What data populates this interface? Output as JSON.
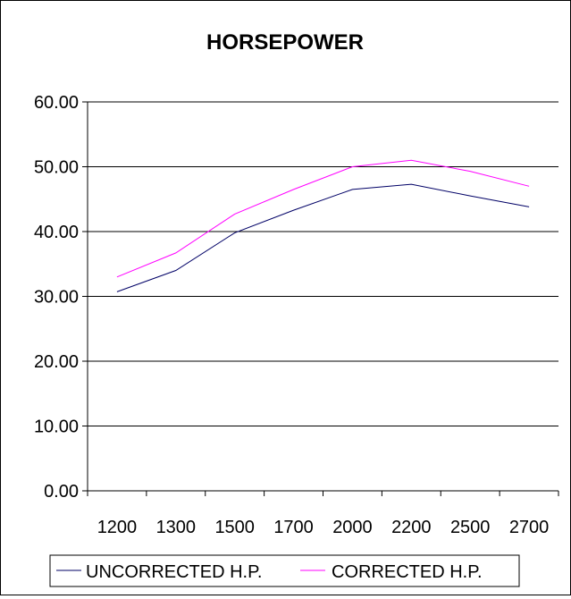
{
  "chart_data": {
    "type": "line",
    "title": "HORSEPOWER",
    "categories": [
      "1200",
      "1300",
      "1500",
      "1700",
      "2000",
      "2200",
      "2500",
      "2700"
    ],
    "y_tick_labels": [
      "0.00",
      "10.00",
      "20.00",
      "30.00",
      "40.00",
      "50.00",
      "60.00"
    ],
    "ylim": [
      0,
      60
    ],
    "grid": true,
    "legend_position": "bottom",
    "series": [
      {
        "name": "UNCORRECTED H.P.",
        "color": "#000066",
        "values": [
          30.7,
          34.0,
          39.8,
          43.3,
          46.5,
          47.3,
          45.5,
          43.8
        ]
      },
      {
        "name": "CORRECTED H.P.",
        "color": "#ff00ff",
        "values": [
          33.0,
          36.7,
          42.7,
          46.5,
          50.0,
          51.0,
          49.3,
          47.0
        ]
      }
    ]
  }
}
